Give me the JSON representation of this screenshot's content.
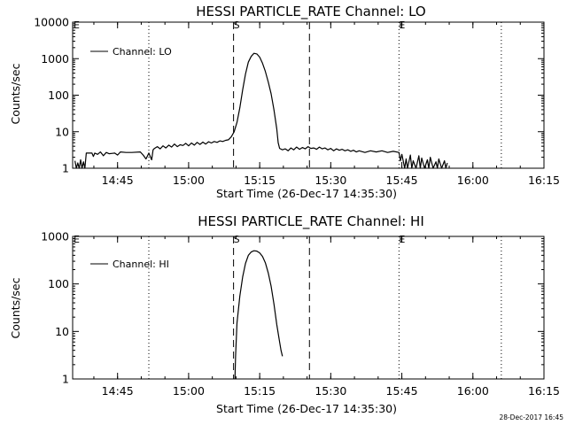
{
  "colors": {
    "background": "#ffffff",
    "foreground": "#000000"
  },
  "xaxis": {
    "label": "Start Time (26-Dec-17 14:35:30)",
    "ticks": [
      {
        "t": 14.75,
        "label": "14:45"
      },
      {
        "t": 15.0,
        "label": "15:00"
      },
      {
        "t": 15.25,
        "label": "15:15"
      },
      {
        "t": 15.5,
        "label": "15:30"
      },
      {
        "t": 15.75,
        "label": "15:45"
      },
      {
        "t": 16.0,
        "label": "16:00"
      },
      {
        "t": 16.25,
        "label": "16:15"
      }
    ],
    "xlim": [
      14.592,
      16.25
    ],
    "units": "hours of day (decimal)"
  },
  "event_lines": {
    "dotted": [
      14.86,
      15.74,
      16.1
    ],
    "dashed": [
      15.158,
      15.425
    ],
    "markers": [
      {
        "t": 14.59,
        "label": "E"
      },
      {
        "t": 15.158,
        "label": "S"
      },
      {
        "t": 15.74,
        "label": "E"
      }
    ]
  },
  "timestamp": "28-Dec-2017 16:45",
  "chart_data": [
    {
      "type": "line",
      "title": "HESSI PARTICLE_RATE Channel: LO",
      "ylabel": "Counts/sec",
      "xlabel": "Start Time (26-Dec-17 14:35:30)",
      "yscale": "log",
      "ylim": [
        1,
        10000
      ],
      "yticks": [
        {
          "v": 1,
          "label": "1"
        },
        {
          "v": 10,
          "label": "10"
        },
        {
          "v": 100,
          "label": "100"
        },
        {
          "v": 1000,
          "label": "1000"
        },
        {
          "v": 10000,
          "label": "10000"
        }
      ],
      "legend": "Channel: LO",
      "legend_position": "top-left",
      "series": [
        {
          "name": "Channel: LO",
          "points": [
            [
              14.59,
              1
            ],
            [
              14.6,
              1.6
            ],
            [
              14.605,
              1
            ],
            [
              14.61,
              1.4
            ],
            [
              14.615,
              1
            ],
            [
              14.62,
              1.7
            ],
            [
              14.625,
              1
            ],
            [
              14.63,
              1.5
            ],
            [
              14.635,
              1
            ],
            [
              14.64,
              2.6
            ],
            [
              14.66,
              2.6
            ],
            [
              14.665,
              2.1
            ],
            [
              14.67,
              2.6
            ],
            [
              14.68,
              2.4
            ],
            [
              14.69,
              2.8
            ],
            [
              14.7,
              2.2
            ],
            [
              14.71,
              2.7
            ],
            [
              14.72,
              2.5
            ],
            [
              14.74,
              2.6
            ],
            [
              14.75,
              2.3
            ],
            [
              14.76,
              2.8
            ],
            [
              14.78,
              2.7
            ],
            [
              14.8,
              2.7
            ],
            [
              14.83,
              2.8
            ],
            [
              14.84,
              2.3
            ],
            [
              14.85,
              1.8
            ],
            [
              14.86,
              2.6
            ],
            [
              14.87,
              1.7
            ],
            [
              14.875,
              3.2
            ],
            [
              14.88,
              3.5
            ],
            [
              14.89,
              3.9
            ],
            [
              14.9,
              3.4
            ],
            [
              14.91,
              4.1
            ],
            [
              14.92,
              3.6
            ],
            [
              14.93,
              4.3
            ],
            [
              14.94,
              3.8
            ],
            [
              14.95,
              4.6
            ],
            [
              14.96,
              3.9
            ],
            [
              14.97,
              4.4
            ],
            [
              14.98,
              4.2
            ],
            [
              14.99,
              4.8
            ],
            [
              15.0,
              4.1
            ],
            [
              15.01,
              4.9
            ],
            [
              15.02,
              4.3
            ],
            [
              15.03,
              5.1
            ],
            [
              15.04,
              4.5
            ],
            [
              15.05,
              5.2
            ],
            [
              15.06,
              4.6
            ],
            [
              15.07,
              5.3
            ],
            [
              15.08,
              4.9
            ],
            [
              15.09,
              5.4
            ],
            [
              15.1,
              5.1
            ],
            [
              15.11,
              5.6
            ],
            [
              15.12,
              5.4
            ],
            [
              15.13,
              5.8
            ],
            [
              15.14,
              6.0
            ],
            [
              15.15,
              7.2
            ],
            [
              15.16,
              10
            ],
            [
              15.17,
              18
            ],
            [
              15.18,
              45
            ],
            [
              15.19,
              140
            ],
            [
              15.2,
              380
            ],
            [
              15.21,
              800
            ],
            [
              15.22,
              1150
            ],
            [
              15.23,
              1400
            ],
            [
              15.24,
              1350
            ],
            [
              15.25,
              1100
            ],
            [
              15.26,
              750
            ],
            [
              15.27,
              450
            ],
            [
              15.28,
              230
            ],
            [
              15.29,
              110
            ],
            [
              15.3,
              40
            ],
            [
              15.31,
              12
            ],
            [
              15.315,
              5
            ],
            [
              15.32,
              3.5
            ],
            [
              15.33,
              3.2
            ],
            [
              15.34,
              3.4
            ],
            [
              15.35,
              3.0
            ],
            [
              15.36,
              3.6
            ],
            [
              15.37,
              3.2
            ],
            [
              15.38,
              3.8
            ],
            [
              15.39,
              3.3
            ],
            [
              15.4,
              3.7
            ],
            [
              15.41,
              3.4
            ],
            [
              15.42,
              3.9
            ],
            [
              15.43,
              3.5
            ],
            [
              15.44,
              3.6
            ],
            [
              15.45,
              3.3
            ],
            [
              15.46,
              3.8
            ],
            [
              15.47,
              3.4
            ],
            [
              15.48,
              3.6
            ],
            [
              15.49,
              3.2
            ],
            [
              15.5,
              3.5
            ],
            [
              15.51,
              3.0
            ],
            [
              15.52,
              3.4
            ],
            [
              15.53,
              3.1
            ],
            [
              15.54,
              3.3
            ],
            [
              15.55,
              3.0
            ],
            [
              15.56,
              3.2
            ],
            [
              15.57,
              2.9
            ],
            [
              15.58,
              3.1
            ],
            [
              15.59,
              2.8
            ],
            [
              15.6,
              3.0
            ],
            [
              15.62,
              2.7
            ],
            [
              15.64,
              3.0
            ],
            [
              15.66,
              2.8
            ],
            [
              15.68,
              3.0
            ],
            [
              15.7,
              2.7
            ],
            [
              15.72,
              2.9
            ],
            [
              15.74,
              2.7
            ],
            [
              15.745,
              1.6
            ],
            [
              15.75,
              2.4
            ],
            [
              15.76,
              1
            ],
            [
              15.765,
              1.8
            ],
            [
              15.77,
              1
            ],
            [
              15.78,
              2.3
            ],
            [
              15.785,
              1
            ],
            [
              15.79,
              1.6
            ],
            [
              15.8,
              1
            ],
            [
              15.81,
              2.2
            ],
            [
              15.815,
              1
            ],
            [
              15.82,
              1.9
            ],
            [
              15.83,
              1
            ],
            [
              15.84,
              1.7
            ],
            [
              15.845,
              1
            ],
            [
              15.85,
              2.0
            ],
            [
              15.86,
              1
            ],
            [
              15.87,
              1.5
            ],
            [
              15.875,
              1
            ],
            [
              15.88,
              1.8
            ],
            [
              15.89,
              1
            ],
            [
              15.9,
              1.6
            ],
            [
              15.905,
              1
            ],
            [
              15.91,
              1.4
            ]
          ]
        }
      ]
    },
    {
      "type": "line",
      "title": "HESSI PARTICLE_RATE Channel: HI",
      "ylabel": "Counts/sec",
      "xlabel": "Start Time (26-Dec-17 14:35:30)",
      "yscale": "log",
      "ylim": [
        1,
        1000
      ],
      "yticks": [
        {
          "v": 1,
          "label": "1"
        },
        {
          "v": 10,
          "label": "10"
        },
        {
          "v": 100,
          "label": "100"
        },
        {
          "v": 1000,
          "label": "1000"
        }
      ],
      "legend": "Channel: HI",
      "legend_position": "top-left",
      "series": [
        {
          "name": "Channel: HI",
          "points": [
            [
              15.163,
              1
            ],
            [
              15.165,
              3
            ],
            [
              15.17,
              15
            ],
            [
              15.18,
              55
            ],
            [
              15.19,
              140
            ],
            [
              15.2,
              270
            ],
            [
              15.21,
              400
            ],
            [
              15.22,
              470
            ],
            [
              15.23,
              500
            ],
            [
              15.24,
              490
            ],
            [
              15.25,
              450
            ],
            [
              15.26,
              380
            ],
            [
              15.27,
              280
            ],
            [
              15.28,
              170
            ],
            [
              15.29,
              90
            ],
            [
              15.3,
              38
            ],
            [
              15.31,
              14
            ],
            [
              15.32,
              6
            ],
            [
              15.325,
              4
            ],
            [
              15.33,
              3
            ]
          ]
        }
      ]
    }
  ]
}
